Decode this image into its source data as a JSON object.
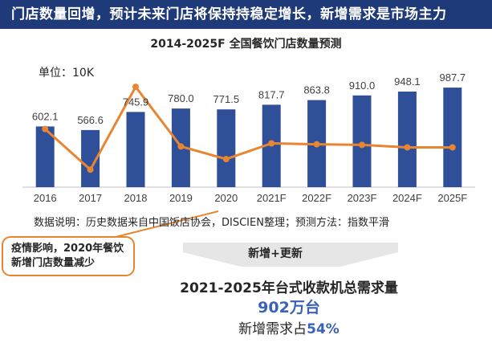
{
  "header": {
    "title": "门店数量回增，预计未来门店将保持持稳定增长，新增需求是市场主力"
  },
  "chart_data": {
    "type": "bar",
    "title": "2014-2025F  全国餐饮门店数量预测",
    "unit_label": "单位：10K",
    "categories": [
      "2016",
      "2017",
      "2018",
      "2019",
      "2020",
      "2021F",
      "2022F",
      "2023F",
      "2024F",
      "2025F"
    ],
    "values": [
      602.1,
      566.6,
      745.9,
      780.0,
      771.5,
      817.7,
      863.8,
      910.0,
      948.1,
      987.7
    ],
    "value_labels": [
      "602.1",
      "566.6",
      "745.9",
      "780.0",
      "771.5",
      "817.7",
      "863.8",
      "910.0",
      "948.1",
      "987.7"
    ],
    "growth_line": [
      12.5,
      -5.9,
      31.6,
      4.6,
      -1.1,
      6.0,
      5.6,
      5.3,
      4.2,
      4.2
    ],
    "bar_color": "#2f4f99",
    "line_color": "#e88532",
    "axis_color": "#bfbfbf",
    "grid": false,
    "legend": "none"
  },
  "note": "数据说明：历史数据来自中国饭店协会，DISCIEN整理；预测方法：指数平滑",
  "callout": {
    "text": "疫情影响，2020年餐饮新增门店数量减少"
  },
  "arrow_label": "新增+更新",
  "summary": {
    "title": "2021-2025年台式收款机总需求量",
    "total": "902万台",
    "share_prefix": "新增需求占",
    "share_value": "54%"
  }
}
